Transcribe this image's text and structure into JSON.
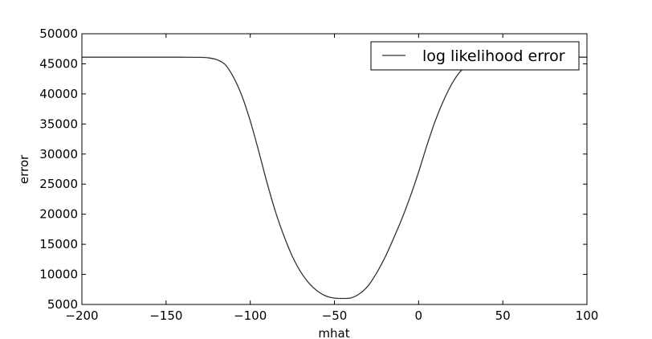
{
  "chart_data": {
    "type": "line",
    "title": "",
    "xlabel": "mhat",
    "ylabel": "error",
    "xlim": [
      -200,
      100
    ],
    "ylim": [
      5000,
      50000
    ],
    "x_ticks": [
      -200,
      -150,
      -100,
      -50,
      0,
      50,
      100
    ],
    "x_tick_labels": [
      "−200",
      "−150",
      "−100",
      "−50",
      "0",
      "50",
      "100"
    ],
    "y_ticks": [
      5000,
      10000,
      15000,
      20000,
      25000,
      30000,
      35000,
      40000,
      45000,
      50000
    ],
    "y_tick_labels": [
      "5000",
      "10000",
      "15000",
      "20000",
      "25000",
      "30000",
      "35000",
      "40000",
      "45000",
      "50000"
    ],
    "grid": false,
    "legend_position": "top-right",
    "series": [
      {
        "name": "log likelihood error",
        "color": "#333333",
        "x": [
          -200,
          -180,
          -160,
          -140,
          -130,
          -125,
          -120,
          -115,
          -110,
          -105,
          -100,
          -95,
          -90,
          -85,
          -80,
          -75,
          -70,
          -65,
          -60,
          -55,
          -50,
          -45,
          -40,
          -35,
          -30,
          -25,
          -20,
          -15,
          -10,
          -5,
          0,
          5,
          10,
          15,
          20,
          25,
          30,
          35,
          40,
          45,
          50,
          60,
          70,
          80,
          90,
          100
        ],
        "y": [
          46100,
          46100,
          46100,
          46100,
          46080,
          46000,
          45700,
          44900,
          42800,
          39700,
          35500,
          30500,
          25200,
          20400,
          16400,
          13000,
          10400,
          8500,
          7200,
          6400,
          6050,
          6000,
          6100,
          6800,
          8100,
          10200,
          12800,
          15900,
          19200,
          22900,
          27000,
          31500,
          35600,
          39000,
          41800,
          43800,
          45000,
          45600,
          45900,
          46050,
          46100,
          46100,
          46100,
          46100,
          46100,
          46100
        ]
      }
    ]
  }
}
